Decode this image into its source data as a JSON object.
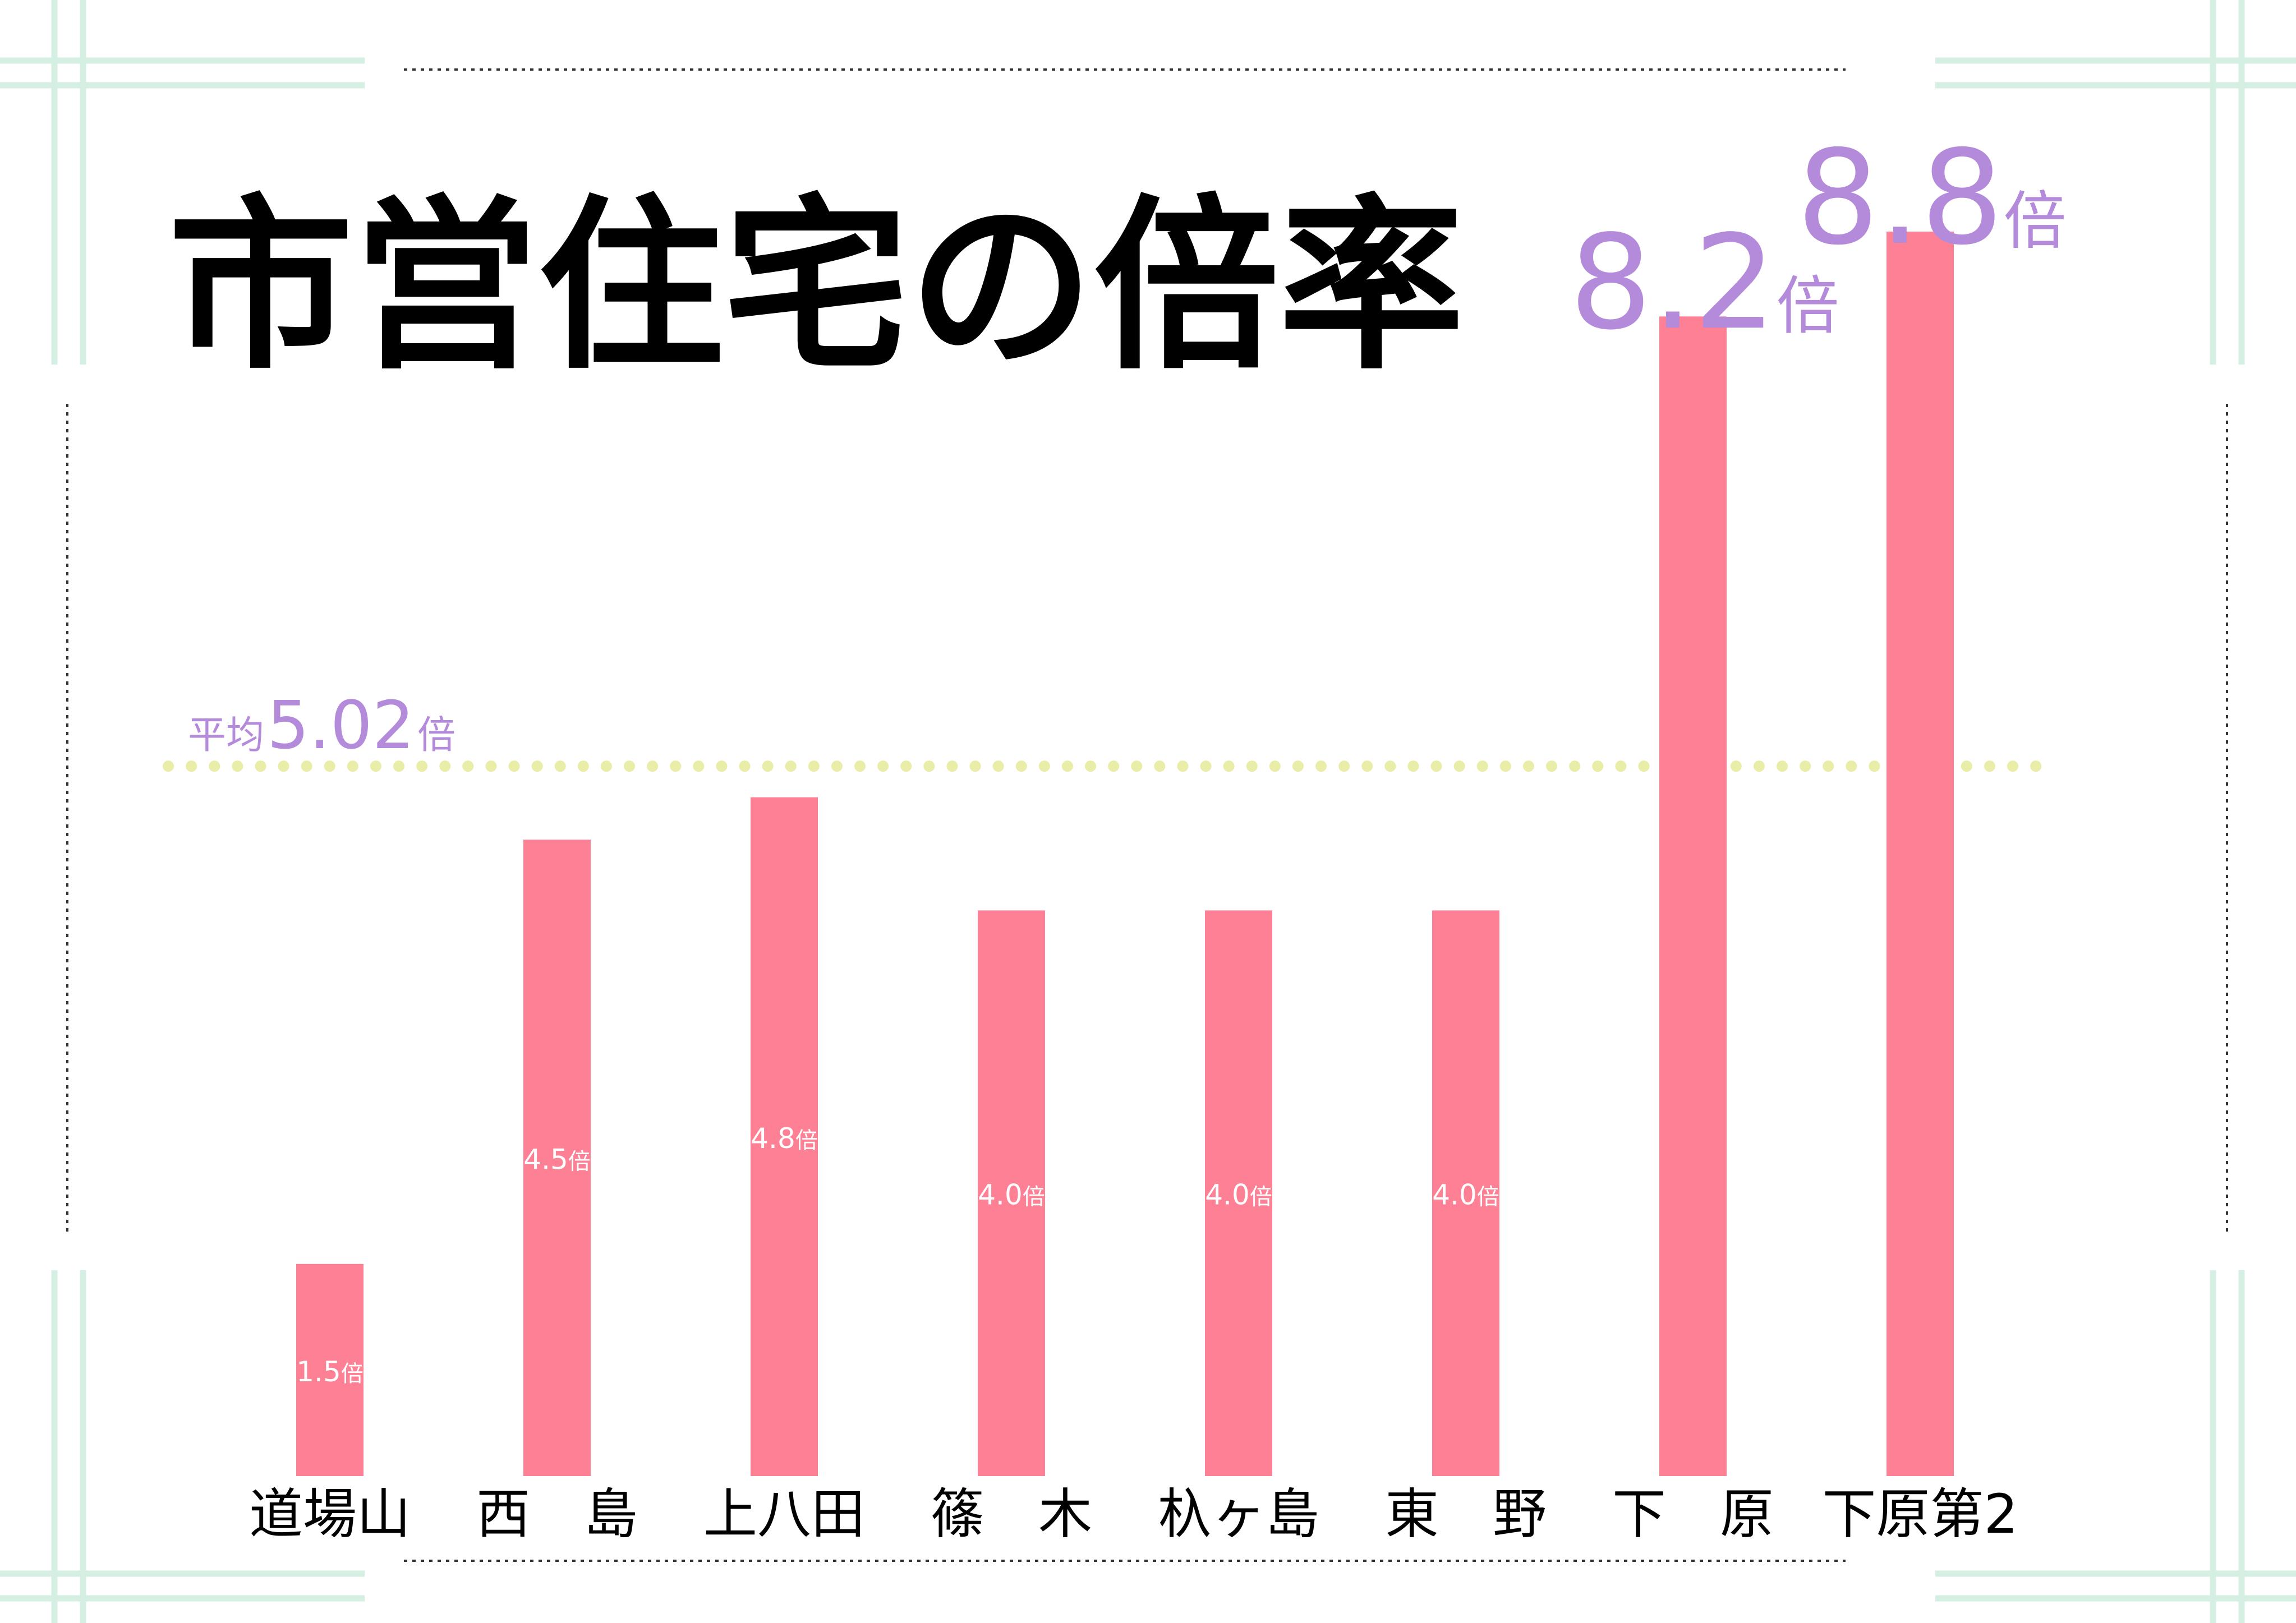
{
  "colors": {
    "bar": "#fd8095",
    "accent_purple": "#b48ada",
    "average_line": "#e9eda7",
    "frame_green": "#d5efe2",
    "frame_dots": "#333333",
    "text": "#000000"
  },
  "average": {
    "prefix": "平均",
    "value_text": "5.02",
    "unit": "倍"
  },
  "chart_data": {
    "type": "bar",
    "title": "市営住宅の倍率",
    "categories": [
      "道場山",
      "西　島",
      "上八田",
      "篠　木",
      "杁ヶ島",
      "東　野",
      "下　原",
      "下原第2"
    ],
    "values": [
      1.5,
      4.5,
      4.8,
      4.0,
      4.0,
      4.0,
      8.2,
      8.8
    ],
    "value_labels": [
      "1.5",
      "4.5",
      "4.8",
      "4.0",
      "4.0",
      "4.0",
      "8.2",
      "8.8"
    ],
    "value_unit": "倍",
    "average_value": 5.02,
    "ylim": [
      0,
      8.8
    ],
    "grid": false,
    "legend": "none",
    "xlabel": "",
    "ylabel": ""
  }
}
